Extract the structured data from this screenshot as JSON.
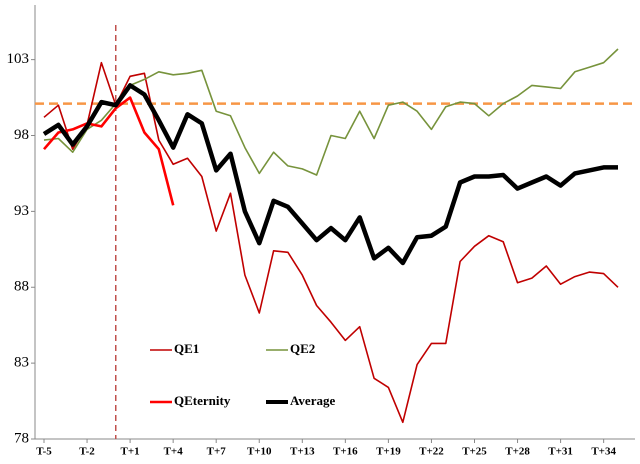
{
  "chart_data": {
    "type": "line",
    "categories": [
      "T-5",
      null,
      null,
      "T-2",
      null,
      null,
      "T+1",
      null,
      null,
      "T+4",
      null,
      null,
      "T+7",
      null,
      null,
      "T+10",
      null,
      null,
      "T+13",
      null,
      null,
      "T+16",
      null,
      null,
      "T+19",
      null,
      null,
      "T+22",
      null,
      null,
      "T+25",
      null,
      null,
      "T+28",
      null,
      null,
      "T+31",
      null,
      null,
      "T+34",
      null
    ],
    "series": [
      {
        "name": "QE1",
        "color": "#c00000",
        "width": 1.6,
        "values": [
          99.2,
          100.0,
          97.1,
          98.7,
          102.8,
          100.0,
          101.9,
          102.1,
          97.7,
          96.1,
          96.5,
          95.3,
          91.7,
          94.2,
          88.8,
          86.3,
          90.4,
          90.3,
          88.8,
          86.8,
          85.7,
          84.5,
          85.4,
          82.0,
          81.4,
          79.1,
          82.9,
          84.3,
          84.3,
          89.7,
          90.7,
          91.4,
          91.0,
          88.3,
          88.6,
          89.4,
          88.2,
          88.7,
          89.0,
          88.9,
          88.0
        ]
      },
      {
        "name": "QE2",
        "color": "#77933c",
        "width": 1.6,
        "values": [
          97.7,
          97.8,
          96.9,
          98.4,
          99.0,
          100.1,
          101.3,
          101.7,
          102.2,
          102.0,
          102.1,
          102.3,
          99.6,
          99.3,
          97.2,
          95.5,
          96.9,
          96.0,
          95.8,
          95.4,
          98.0,
          97.8,
          99.6,
          97.8,
          100.0,
          100.2,
          99.6,
          98.4,
          99.9,
          100.2,
          100.1,
          99.3,
          100.1,
          100.6,
          101.3,
          101.2,
          101.1,
          102.2,
          102.5,
          102.8,
          103.7
        ]
      },
      {
        "name": "QEternity",
        "color": "#ff0000",
        "width": 2.6,
        "values": [
          97.1,
          98.2,
          98.4,
          98.8,
          98.6,
          99.8,
          100.5,
          98.2,
          97.1,
          93.4,
          null,
          null,
          null,
          null,
          null,
          null,
          null,
          null,
          null,
          null,
          null,
          null,
          null,
          null,
          null,
          null,
          null,
          null,
          null,
          null,
          null,
          null,
          null,
          null,
          null,
          null,
          null,
          null,
          null,
          null,
          null
        ]
      },
      {
        "name": "Average",
        "color": "#000000",
        "width": 4.5,
        "values": [
          98.1,
          98.7,
          97.4,
          98.6,
          100.2,
          100.0,
          101.3,
          100.7,
          99.0,
          97.2,
          99.4,
          98.8,
          95.7,
          96.8,
          93.0,
          90.9,
          93.7,
          93.3,
          92.2,
          91.1,
          91.9,
          91.1,
          92.6,
          89.9,
          90.6,
          89.6,
          91.3,
          91.4,
          92.0,
          94.9,
          95.3,
          95.3,
          95.4,
          94.5,
          94.9,
          95.3,
          94.7,
          95.5,
          95.7,
          95.9,
          95.9
        ]
      }
    ],
    "ylim": [
      78,
      106.6
    ],
    "yticks": [
      78,
      83,
      88,
      93,
      98,
      103
    ],
    "reference_line": {
      "value": 100.1,
      "color": "#f79646"
    },
    "event_index": 5,
    "event_color": "#c0504d",
    "grid": false
  }
}
